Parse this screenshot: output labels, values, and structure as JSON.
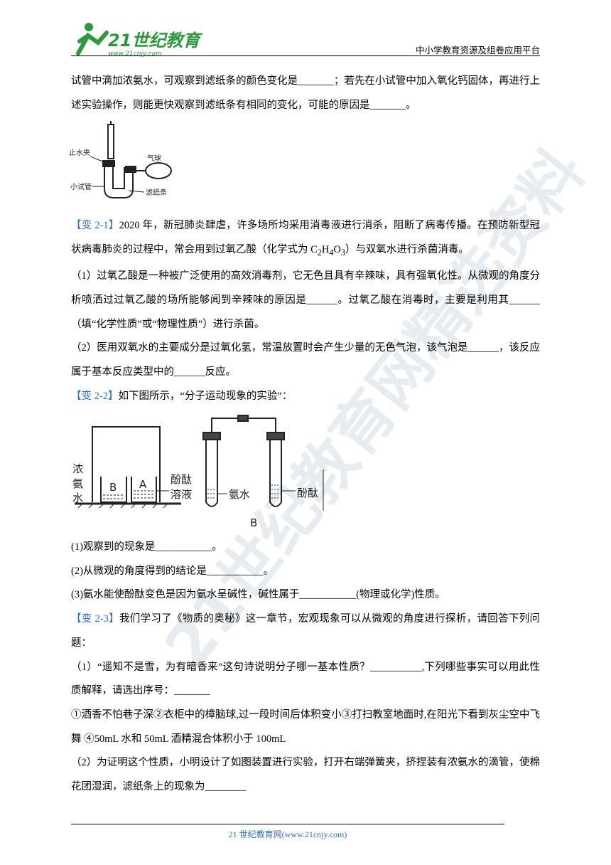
{
  "header": {
    "logo": "21世纪教育",
    "logo_url": "www.21cnjy.com",
    "platform": "中小学教育资源及组卷应用平台"
  },
  "watermark": "21世纪教育网精选资料",
  "intro": "试管中滴加浓氨水，可观察到滤纸条的颜色变化是_______；若先在小试管中加入氧化钙固体，再进行上述实验操作，则能更快观察到滤纸条有相同的变化，可能的原因是_______。",
  "figure1": {
    "labels": [
      "止水夹",
      "小试管",
      "气球",
      "滤纸条"
    ]
  },
  "q1": {
    "tag": "【变 2-1】",
    "runs": [
      "2020 年，新冠肺炎肆虐，许多场所均采用消毒液进行消杀，阻断了病毒传播。在预防新型冠状病毒肺炎的过程中，常会用到过氧乙酸（化学式为 C",
      {
        "sub": "2"
      },
      "H",
      {
        "sub": "4"
      },
      "O",
      {
        "sub": "3"
      },
      "）与双氧水进行杀菌消毒。"
    ],
    "items": [
      "（1）过氧乙酸是一种被广泛使用的高效消毒剂，它无色且具有辛辣味，具有强氧化性。从微观的角度分析喷洒过过氧乙酸的场所能够闻到辛辣味的原因是______。过氧乙酸在消毒时，主要是利用其______（填“化学性质”或“物理性质”）进行杀菌。",
      "（2）医用双氧水的主要成分是过氧化氢，常温放置时会产生少量的无色气泡，该气泡是______，该反应属于基本反应类型中的______反应。"
    ]
  },
  "q2": {
    "tag": "【变 2-2】",
    "text": "如下图所示，“分子运动现象的实验”：",
    "figure": {
      "left_labels": [
        "浓",
        "氨",
        "水"
      ],
      "beakers": [
        "B",
        "A"
      ],
      "right_labels": [
        "酚酞",
        "溶液"
      ],
      "tube_labels": [
        "氨水",
        "酚酞"
      ],
      "caption": "B"
    },
    "items": [
      "(1)观察到的现象是___________。",
      "(2)从微观的角度得到的结论是___________。",
      "(3)氨水能使酚酞变色是因为氨水呈碱性，碱性属于___________(物理或化学)性质。"
    ]
  },
  "q3": {
    "tag": "【变 2-3】",
    "text": "我们学习了《物质的奥秘》这一章节，宏观现象可以从微观的角度进行探析，请回答下列问题：",
    "items": [
      "（1）“遥知不是雪，为有暗香来”这句诗说明分子哪一基本性质？__________,下列哪些事实可以用此性质解释，请选出序号：_______",
      "①酒香不怕巷子深②衣柜中的樟脑球,过一段时间后体积变小③打扫教室地面时,在阳光下看到灰尘空中飞舞 ④50mL 水和 50mL 酒精混合体积小于 100mL",
      "（2）为证明这个性质，小明设计了如图装置进行实验，打开右端弹簧夹，挤捏装有浓氨水的滴管，使棉花团湿润，滤纸条上的现象为________"
    ]
  },
  "footer": "21 世纪教育网(www.21cnjy.com)"
}
